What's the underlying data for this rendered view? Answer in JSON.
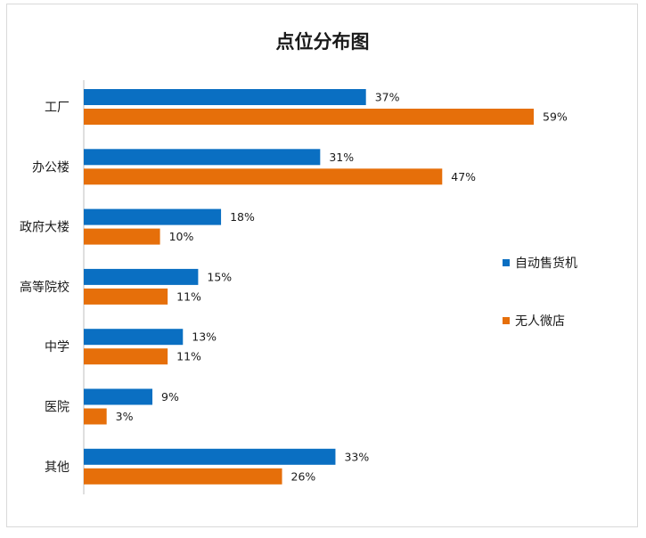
{
  "chart_data": {
    "type": "bar",
    "orientation": "horizontal",
    "title": "点位分布图",
    "categories": [
      "工厂",
      "办公楼",
      "政府大楼",
      "高等院校",
      "中学",
      "医院",
      "其他"
    ],
    "series": [
      {
        "name": "自动售货机",
        "color": "#0a6fc2",
        "values": [
          37,
          31,
          18,
          15,
          13,
          9,
          33
        ]
      },
      {
        "name": "无人微店",
        "color": "#e66f0a",
        "values": [
          59,
          47,
          10,
          11,
          11,
          3,
          26
        ]
      }
    ],
    "value_suffix": "%",
    "xlim": [
      0,
      75
    ],
    "grid": false,
    "legend_position": "right"
  }
}
